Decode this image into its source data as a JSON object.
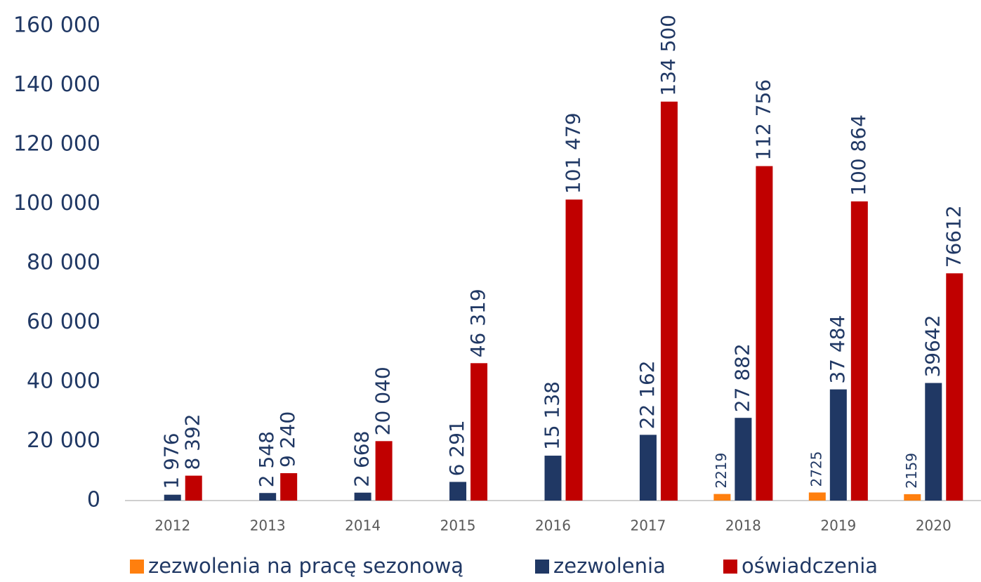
{
  "chart_data": {
    "type": "bar",
    "categories": [
      "2012",
      "2013",
      "2014",
      "2015",
      "2016",
      "2017",
      "2018",
      "2019",
      "2020"
    ],
    "series": [
      {
        "name": "zezwolenia na pracę sezonową",
        "color": "#ff7f0e",
        "values": [
          null,
          null,
          null,
          null,
          null,
          null,
          2219,
          2725,
          2159
        ]
      },
      {
        "name": "zezwolenia",
        "color": "#203864",
        "values": [
          1976,
          2548,
          2668,
          6291,
          15138,
          22162,
          27882,
          37484,
          39642
        ],
        "value_labels": [
          "1 976",
          "2 548",
          "2 668",
          "6 291",
          "15 138",
          "22 162",
          "27 882",
          "37 484",
          "39642"
        ]
      },
      {
        "name": "oświadczenia",
        "color": "#c00000",
        "values": [
          8392,
          9240,
          20040,
          46319,
          101479,
          134500,
          112756,
          100864,
          76612
        ],
        "value_labels": [
          "8 392",
          "9 240",
          "20 040",
          "46 319",
          "101 479",
          "134 500",
          "112 756",
          "100 864",
          "76612"
        ]
      }
    ],
    "ylim": [
      0,
      160000
    ],
    "yticks": [
      0,
      {
        "value": 20000,
        "label": "20 000"
      },
      {
        "value": 40000,
        "label": "40 000"
      },
      {
        "value": 60000,
        "label": "60 000"
      },
      {
        "value": 80000,
        "label": "80 000"
      },
      {
        "value": 100000,
        "label": "100 000"
      },
      {
        "value": 120000,
        "label": "120 000"
      },
      {
        "value": 140000,
        "label": "140 000"
      },
      {
        "value": 160000,
        "label": "160 000"
      }
    ],
    "grid": false,
    "legend": "bottom"
  }
}
